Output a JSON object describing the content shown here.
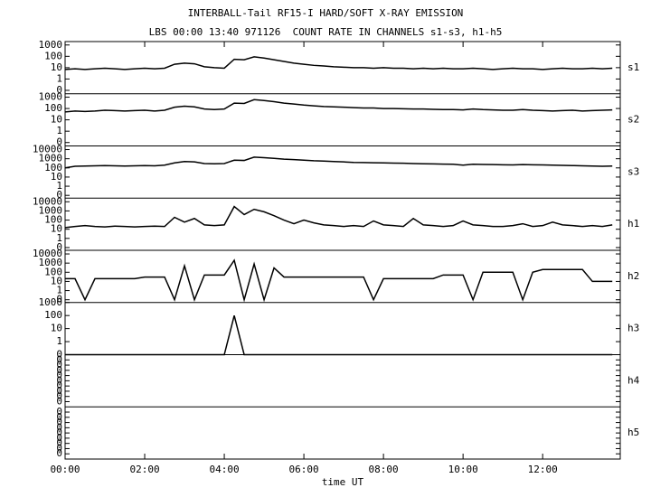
{
  "chart_data": {
    "type": "line",
    "title": "INTERBALL-Tail RF15-I HARD/SOFT X-RAY EMISSION",
    "subtitle": "LBS 00:00 13:40 971126  COUNT RATE IN CHANNELS s1-s3, h1-h5",
    "xlabel": "time UT",
    "xlim": [
      0,
      13.95
    ],
    "xticks": [
      {
        "value": 0,
        "label": "00:00"
      },
      {
        "value": 2,
        "label": "02:00"
      },
      {
        "value": 4,
        "label": "04:00"
      },
      {
        "value": 6,
        "label": "06:00"
      },
      {
        "value": 8,
        "label": "08:00"
      },
      {
        "value": 10,
        "label": "10:00"
      },
      {
        "value": 12,
        "label": "12:00"
      }
    ],
    "x": [
      0,
      0.25,
      0.5,
      0.75,
      1,
      1.25,
      1.5,
      1.75,
      2,
      2.25,
      2.5,
      2.75,
      3,
      3.25,
      3.5,
      3.75,
      4,
      4.25,
      4.5,
      4.75,
      5,
      5.25,
      5.5,
      5.75,
      6,
      6.25,
      6.5,
      6.75,
      7,
      7.25,
      7.5,
      7.75,
      8,
      8.25,
      8.5,
      8.75,
      9,
      9.25,
      9.5,
      9.75,
      10,
      10.25,
      10.5,
      10.75,
      11,
      11.25,
      11.5,
      11.75,
      12,
      12.25,
      12.5,
      12.75,
      13,
      13.25,
      13.5,
      13.75
    ],
    "log_scale": true,
    "panels": [
      {
        "name": "s1",
        "color": "#000000",
        "ylim": [
          0.05,
          2000
        ],
        "yticks": [
          1000,
          100,
          10,
          1,
          {
            "value": 0.1,
            "label": "0"
          }
        ],
        "values": [
          7,
          8,
          7,
          8,
          9,
          8,
          7,
          8,
          9,
          8,
          9,
          20,
          25,
          22,
          12,
          10,
          9,
          55,
          50,
          90,
          70,
          50,
          35,
          25,
          20,
          16,
          14,
          12,
          11,
          10,
          10,
          9,
          10,
          9,
          9,
          8,
          9,
          8,
          9,
          8,
          8,
          9,
          8,
          7,
          8,
          9,
          8,
          8,
          7,
          8,
          9,
          8,
          8,
          9,
          8,
          9
        ]
      },
      {
        "name": "s2",
        "color": "#000000",
        "ylim": [
          0.05,
          2000
        ],
        "yticks": [
          1000,
          100,
          10,
          1,
          {
            "value": 0.1,
            "label": "0"
          }
        ],
        "values": [
          50,
          60,
          55,
          60,
          70,
          65,
          60,
          65,
          70,
          60,
          70,
          130,
          160,
          140,
          90,
          80,
          90,
          300,
          280,
          600,
          500,
          400,
          300,
          250,
          200,
          170,
          150,
          140,
          130,
          120,
          110,
          110,
          100,
          100,
          95,
          90,
          90,
          85,
          80,
          80,
          75,
          90,
          80,
          75,
          70,
          70,
          80,
          70,
          65,
          60,
          65,
          70,
          60,
          65,
          70,
          75
        ]
      },
      {
        "name": "s3",
        "color": "#000000",
        "ylim": [
          0.05,
          25000
        ],
        "yticks": [
          10000,
          1000,
          100,
          10,
          1,
          {
            "value": 0.1,
            "label": "0"
          }
        ],
        "values": [
          100,
          150,
          160,
          170,
          180,
          170,
          160,
          170,
          180,
          170,
          200,
          350,
          500,
          450,
          300,
          280,
          300,
          700,
          650,
          1500,
          1300,
          1100,
          900,
          800,
          700,
          600,
          550,
          500,
          450,
          400,
          380,
          360,
          350,
          330,
          320,
          300,
          280,
          270,
          260,
          250,
          200,
          250,
          240,
          230,
          220,
          210,
          230,
          220,
          210,
          200,
          190,
          180,
          170,
          160,
          150,
          160
        ]
      },
      {
        "name": "h1",
        "color": "#000000",
        "ylim": [
          0.05,
          25000
        ],
        "yticks": [
          10000,
          1000,
          100,
          10,
          1,
          {
            "value": 0.1,
            "label": "0"
          }
        ],
        "values": [
          15,
          20,
          25,
          20,
          18,
          22,
          20,
          18,
          20,
          22,
          20,
          200,
          60,
          150,
          30,
          25,
          30,
          3000,
          400,
          1500,
          800,
          300,
          100,
          40,
          100,
          50,
          30,
          25,
          20,
          25,
          20,
          80,
          30,
          25,
          20,
          150,
          30,
          25,
          20,
          25,
          80,
          30,
          25,
          20,
          20,
          25,
          40,
          20,
          25,
          60,
          30,
          25,
          20,
          25,
          20,
          30
        ]
      },
      {
        "name": "h2",
        "color": "#000000",
        "ylim": [
          0.05,
          25000
        ],
        "yticks": [
          10000,
          1000,
          100,
          10,
          1,
          {
            "value": 0.1,
            "label": "0"
          }
        ],
        "values": [
          20,
          20,
          0.1,
          20,
          20,
          20,
          20,
          20,
          30,
          30,
          30,
          0.1,
          500,
          0.1,
          50,
          50,
          50,
          2000,
          0.1,
          800,
          0.1,
          300,
          30,
          30,
          30,
          30,
          30,
          30,
          30,
          30,
          30,
          0.1,
          20,
          20,
          20,
          20,
          20,
          20,
          50,
          50,
          50,
          0.1,
          100,
          100,
          100,
          100,
          0.1,
          100,
          200,
          200,
          200,
          200,
          200,
          10,
          10,
          10
        ]
      },
      {
        "name": "h3",
        "color": "#000000",
        "ylim": [
          0.1,
          1000
        ],
        "yticks": [
          1000,
          100,
          10,
          1,
          {
            "value": 0.1,
            "label": "0"
          }
        ],
        "values": [
          0.1,
          0.1,
          0.1,
          0.1,
          0.1,
          0.1,
          0.1,
          0.1,
          0.1,
          0.1,
          0.1,
          0.1,
          0.1,
          0.1,
          0.1,
          0.1,
          0.1,
          100,
          0.1,
          0.1,
          0.1,
          0.1,
          0.1,
          0.1,
          0.1,
          0.1,
          0.1,
          0.1,
          0.1,
          0.1,
          0.1,
          0.1,
          0.1,
          0.1,
          0.1,
          0.1,
          0.1,
          0.1,
          0.1,
          0.1,
          0.1,
          0.1,
          0.1,
          0.1,
          0.1,
          0.1,
          0.1,
          0.1,
          0.1,
          0.1,
          0.1,
          0.1,
          0.1,
          0.1,
          0.1,
          0.1
        ]
      },
      {
        "name": "h4",
        "ylim": [
          1e-10,
          1
        ],
        "yticks": [
          {
            "value": 0.1,
            "label": "0"
          },
          {
            "value": 0.01,
            "label": "0"
          },
          {
            "value": 0.001,
            "label": "0"
          },
          {
            "value": 0.0001,
            "label": "0"
          },
          {
            "value": 1e-05,
            "label": "0"
          },
          {
            "value": 1e-06,
            "label": "0"
          },
          {
            "value": 1e-07,
            "label": "0"
          },
          {
            "value": 1e-08,
            "label": "0"
          },
          {
            "value": 1e-09,
            "label": "0"
          }
        ]
      },
      {
        "name": "h5",
        "ylim": [
          1e-10,
          1
        ],
        "yticks": [
          {
            "value": 0.1,
            "label": "0"
          },
          {
            "value": 0.01,
            "label": "0"
          },
          {
            "value": 0.001,
            "label": "0"
          },
          {
            "value": 0.0001,
            "label": "0"
          },
          {
            "value": 1e-05,
            "label": "0"
          },
          {
            "value": 1e-06,
            "label": "0"
          },
          {
            "value": 1e-07,
            "label": "0"
          },
          {
            "value": 1e-08,
            "label": "0"
          },
          {
            "value": 1e-09,
            "label": "0"
          }
        ]
      }
    ]
  }
}
